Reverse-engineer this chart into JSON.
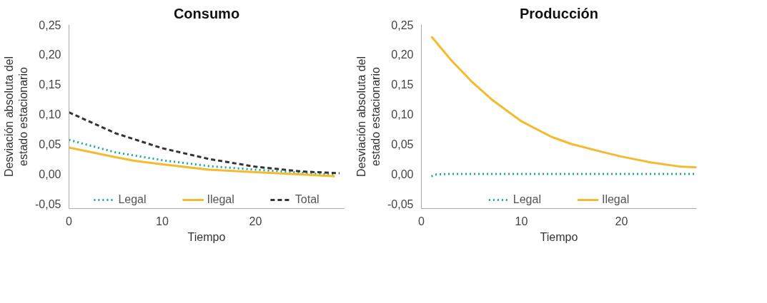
{
  "chart_data": [
    {
      "type": "line",
      "title": "Consumo",
      "xlabel": "Tiempo",
      "ylabel": "Desviación absoluta del\nestado estacionario",
      "xlim": [
        0,
        29.5
      ],
      "ylim": [
        -0.058,
        0.25
      ],
      "xticks": [
        0,
        10,
        20
      ],
      "yticks": [
        {
          "value": -0.05,
          "label": "-0,05"
        },
        {
          "value": 0,
          "label": "0,00"
        },
        {
          "value": 0.05,
          "label": "0,05"
        },
        {
          "value": 0.1,
          "label": "0,10"
        },
        {
          "value": 0.15,
          "label": "0,15"
        },
        {
          "value": 0.2,
          "label": "0,20"
        },
        {
          "value": 0.25,
          "label": "0,25"
        }
      ],
      "grid": false,
      "legend": "bottom",
      "series": [
        {
          "name": "Legal",
          "color": "#1aaa9b",
          "line_style": "dotted",
          "x": [
            0,
            5,
            10,
            15,
            20,
            25,
            28.5
          ],
          "values": [
            0.057,
            0.036,
            0.023,
            0.013,
            0.007,
            0.002,
            -0.002
          ]
        },
        {
          "name": "Ilegal",
          "color": "#f5bb30",
          "line_style": "solid",
          "x": [
            0,
            5,
            7,
            10,
            15,
            20,
            25,
            28.5
          ],
          "values": [
            0.044,
            0.028,
            0.022,
            0.016,
            0.007,
            0.003,
            -0.001,
            -0.004
          ]
        },
        {
          "name": "Total",
          "color": "#333333",
          "line_style": "dashed",
          "x": [
            0,
            5,
            10,
            15,
            20,
            25,
            29
          ],
          "values": [
            0.103,
            0.068,
            0.043,
            0.025,
            0.012,
            0.004,
            0.001
          ]
        }
      ]
    },
    {
      "type": "line",
      "title": "Producción",
      "xlabel": "Tiempo",
      "ylabel": "Desviación absoluta del\nestado estacionario",
      "xlim": [
        0,
        27.5
      ],
      "ylim": [
        -0.058,
        0.25
      ],
      "xticks": [
        0,
        10,
        20
      ],
      "yticks": [
        {
          "value": -0.05,
          "label": "-0,05"
        },
        {
          "value": 0,
          "label": "0,00"
        },
        {
          "value": 0.05,
          "label": "0,05"
        },
        {
          "value": 0.1,
          "label": "0,10"
        },
        {
          "value": 0.15,
          "label": "0,15"
        },
        {
          "value": 0.2,
          "label": "0,20"
        },
        {
          "value": 0.25,
          "label": "0,25"
        }
      ],
      "grid": false,
      "legend": "bottom",
      "series": [
        {
          "name": "Legal",
          "color": "#1aaa9b",
          "line_style": "dotted",
          "x": [
            1,
            1.5,
            3,
            10,
            20,
            27.5
          ],
          "values": [
            -0.004,
            -0.001,
            0,
            0,
            0,
            0
          ]
        },
        {
          "name": "Ilegal",
          "color": "#f5bb30",
          "line_style": "solid",
          "x": [
            1,
            3,
            5,
            7,
            10,
            13,
            15,
            18,
            20,
            23,
            26,
            27.5
          ],
          "values": [
            0.23,
            0.19,
            0.155,
            0.125,
            0.088,
            0.062,
            0.05,
            0.037,
            0.029,
            0.019,
            0.012,
            0.011
          ]
        }
      ]
    }
  ]
}
